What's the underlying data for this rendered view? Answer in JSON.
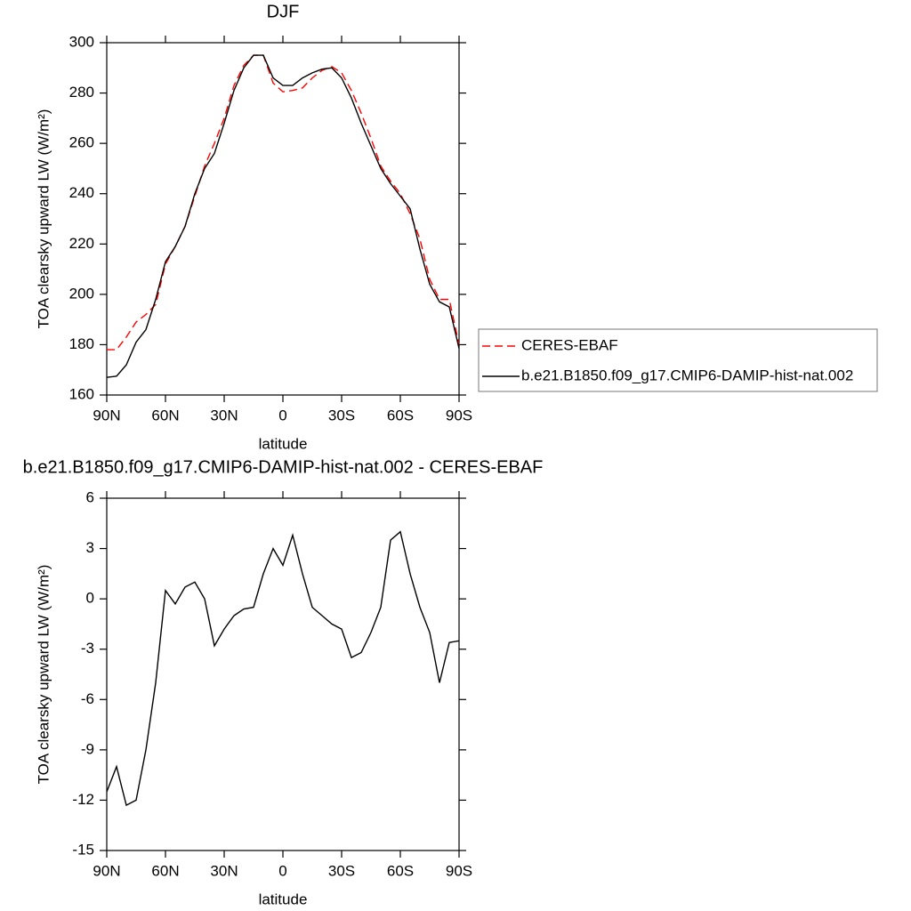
{
  "chart_data": [
    {
      "type": "line",
      "title": "DJF",
      "xlabel": "latitude",
      "ylabel": "TOA clearsky upward LW (W/m²)",
      "x": [
        90,
        85,
        80,
        75,
        70,
        65,
        60,
        55,
        50,
        45,
        40,
        35,
        30,
        25,
        20,
        15,
        10,
        5,
        0,
        -5,
        -10,
        -15,
        -20,
        -25,
        -30,
        -35,
        -40,
        -45,
        -50,
        -55,
        -60,
        -65,
        -70,
        -75,
        -80,
        -85,
        -90
      ],
      "xlim": [
        90,
        -90
      ],
      "xticks": [
        {
          "value": 90,
          "label": "90N"
        },
        {
          "value": 60,
          "label": "60N"
        },
        {
          "value": 30,
          "label": "30N"
        },
        0,
        {
          "value": -30,
          "label": "30S"
        },
        {
          "value": -60,
          "label": "60S"
        },
        {
          "value": -90,
          "label": "90S"
        }
      ],
      "ylim": [
        160,
        300
      ],
      "yticks": [
        160,
        180,
        200,
        220,
        240,
        260,
        280,
        300
      ],
      "legend": "right",
      "series": [
        {
          "name": "CERES-EBAF",
          "color": "#ff0000",
          "dashed": true,
          "values": [
            178,
            178,
            183,
            189,
            192,
            196,
            212,
            219,
            227,
            239,
            251,
            260,
            270,
            283,
            291,
            295,
            295,
            284,
            280.5,
            281,
            282,
            286,
            289,
            290.5,
            288,
            281,
            272,
            262,
            251,
            245,
            240,
            232,
            222,
            206,
            198,
            198,
            180
          ]
        },
        {
          "name": "b.e21.B1850.f09_g17.CMIP6-DAMIP-hist-nat.002",
          "color": "#000000",
          "dashed": false,
          "values": [
            167,
            167.5,
            172,
            181,
            186,
            198,
            213,
            219,
            227,
            240,
            250,
            256,
            268,
            281,
            290,
            295,
            295,
            286,
            283,
            283,
            286,
            288,
            289.5,
            290,
            286,
            278,
            268,
            259,
            250,
            244,
            239,
            234,
            218,
            204,
            197,
            195,
            178.5
          ]
        }
      ]
    },
    {
      "type": "line",
      "title": "b.e21.B1850.f09_g17.CMIP6-DAMIP-hist-nat.002 - CERES-EBAF",
      "xlabel": "latitude",
      "ylabel": "TOA clearsky upward LW (W/m²)",
      "x": [
        90,
        85,
        80,
        75,
        70,
        65,
        60,
        55,
        50,
        45,
        40,
        35,
        30,
        25,
        20,
        15,
        10,
        5,
        0,
        -5,
        -10,
        -15,
        -20,
        -25,
        -30,
        -35,
        -40,
        -45,
        -50,
        -55,
        -60,
        -65,
        -70,
        -75,
        -80,
        -85,
        -90
      ],
      "xlim": [
        90,
        -90
      ],
      "xticks": [
        {
          "value": 90,
          "label": "90N"
        },
        {
          "value": 60,
          "label": "60N"
        },
        {
          "value": 30,
          "label": "30N"
        },
        0,
        {
          "value": -30,
          "label": "30S"
        },
        {
          "value": -60,
          "label": "60S"
        },
        {
          "value": -90,
          "label": "90S"
        }
      ],
      "ylim": [
        -15,
        6
      ],
      "yticks": [
        -15,
        -12,
        -9,
        -6,
        -3,
        0,
        3,
        6
      ],
      "color": "#000000",
      "values": [
        -11.5,
        -10,
        -12.3,
        -12,
        -9,
        -5,
        0.5,
        -0.3,
        0.7,
        1,
        0,
        -2.8,
        -1.8,
        -1,
        -0.6,
        -0.5,
        1.5,
        3,
        2,
        3.8,
        1.5,
        -0.5,
        -1,
        -1.5,
        -1.8,
        -3.5,
        -3.2,
        -2,
        -0.5,
        3.5,
        4,
        1.5,
        -0.5,
        -2,
        -5,
        -2.6,
        -2.5
      ]
    }
  ]
}
